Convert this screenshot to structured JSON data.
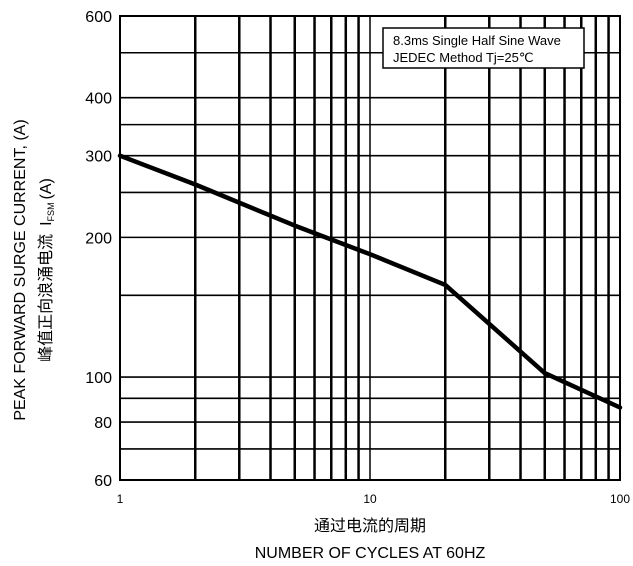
{
  "chart_data": {
    "type": "line",
    "x_scale": "log",
    "y_scale": "log",
    "xlim": [
      1,
      100
    ],
    "ylim": [
      60,
      600
    ],
    "xticks": [
      1,
      10,
      100
    ],
    "xtick_labels": [
      "1",
      "10",
      "100"
    ],
    "yticks": [
      600,
      400,
      300,
      200,
      100,
      80,
      60
    ],
    "ytick_labels": [
      "600",
      "400",
      "300",
      "200",
      "100",
      "80",
      "60"
    ],
    "xlabel_cn": "通过电流的周期",
    "xlabel": "NUMBER OF CYCLES AT 60HZ",
    "ylabel": "PEAK FORWARD SURGE CURRENT, (A)",
    "ylabel_cn": "峰值正向浪涌电流",
    "ylabel_symbol": "I",
    "ylabel_symbol_sub": "FSM",
    "ylabel_unit": "(A)",
    "legend_lines": [
      "8.3ms Single Half Sine Wave",
      "JEDEC Method  Tj=25℃"
    ],
    "grid": true,
    "series": [
      {
        "x": [
          1,
          2,
          5,
          10,
          20,
          50,
          100
        ],
        "y": [
          300,
          260,
          212,
          184,
          158,
          102,
          86
        ]
      }
    ]
  }
}
